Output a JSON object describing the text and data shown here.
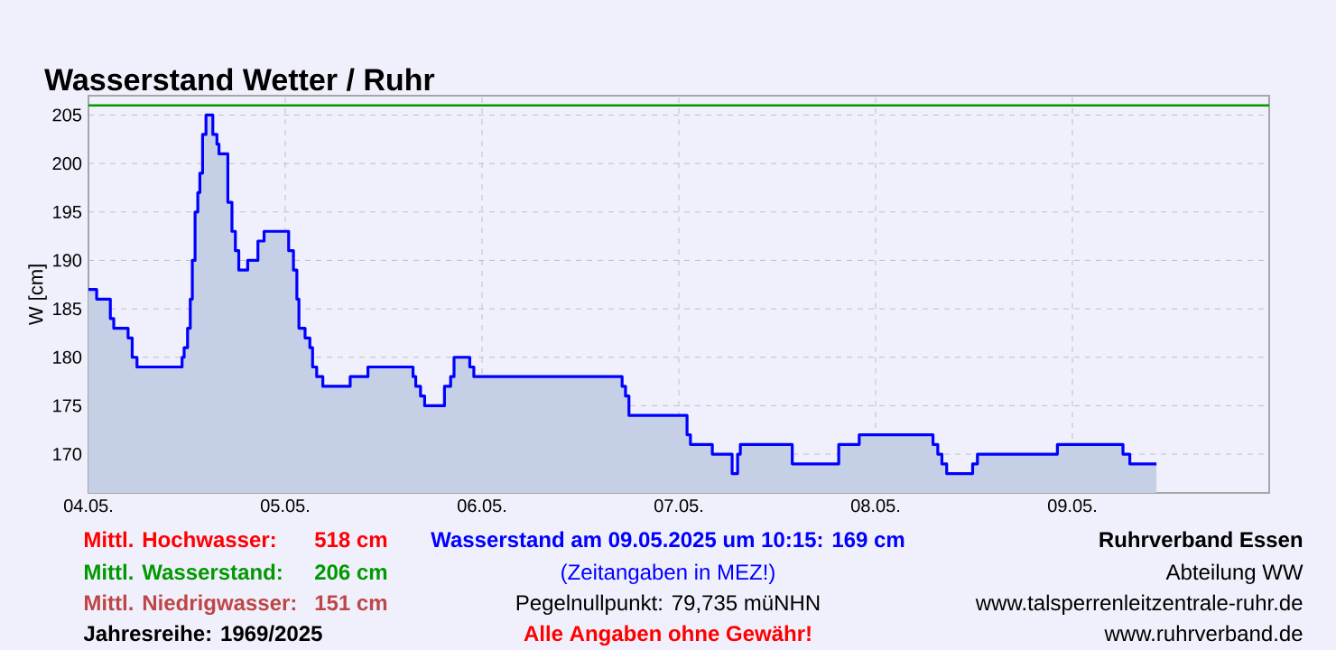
{
  "chart_data": {
    "type": "step",
    "title": "Wasserstand Wetter / Ruhr",
    "ylabel": "W [cm]",
    "xlim": [
      "2025-05-04",
      "2025-05-10"
    ],
    "xticks": [
      {
        "value": "2025-05-04",
        "label": "04.05."
      },
      {
        "value": "2025-05-05",
        "label": "05.05."
      },
      {
        "value": "2025-05-06",
        "label": "06.05."
      },
      {
        "value": "2025-05-07",
        "label": "07.05."
      },
      {
        "value": "2025-05-08",
        "label": "08.05."
      },
      {
        "value": "2025-05-09",
        "label": "09.05."
      }
    ],
    "ylim": [
      166,
      207
    ],
    "yticks": [
      170,
      175,
      180,
      185,
      190,
      195,
      200,
      205
    ],
    "grid": true,
    "ref_lines": [
      {
        "axis": "y",
        "value": 206,
        "color": "#009900"
      }
    ],
    "x": [
      "2025-05-04T00:00",
      "2025-05-04T01:00",
      "2025-05-04T02:40",
      "2025-05-04T03:05",
      "2025-05-04T04:50",
      "2025-05-04T05:20",
      "2025-05-04T05:55",
      "2025-05-04T11:25",
      "2025-05-04T11:40",
      "2025-05-04T12:05",
      "2025-05-04T12:25",
      "2025-05-04T12:40",
      "2025-05-04T13:00",
      "2025-05-04T13:20",
      "2025-05-04T13:35",
      "2025-05-04T13:55",
      "2025-05-04T14:20",
      "2025-05-04T15:10",
      "2025-05-04T15:40",
      "2025-05-04T15:55",
      "2025-05-04T17:00",
      "2025-05-04T17:30",
      "2025-05-04T17:55",
      "2025-05-04T18:20",
      "2025-05-04T19:25",
      "2025-05-04T20:40",
      "2025-05-04T21:25",
      "2025-05-05T00:25",
      "2025-05-05T01:00",
      "2025-05-05T01:25",
      "2025-05-05T01:40",
      "2025-05-05T02:25",
      "2025-05-05T03:00",
      "2025-05-05T03:20",
      "2025-05-05T03:50",
      "2025-05-05T04:35",
      "2025-05-05T07:55",
      "2025-05-05T10:05",
      "2025-05-05T15:35",
      "2025-05-05T15:55",
      "2025-05-05T16:30",
      "2025-05-05T17:00",
      "2025-05-05T19:25",
      "2025-05-05T20:10",
      "2025-05-05T20:35",
      "2025-05-05T22:30",
      "2025-05-05T23:00",
      "2025-05-06T17:05",
      "2025-05-06T17:30",
      "2025-05-06T17:55",
      "2025-05-07T01:00",
      "2025-05-07T01:25",
      "2025-05-07T04:05",
      "2025-05-07T06:30",
      "2025-05-07T07:10",
      "2025-05-07T07:30",
      "2025-05-07T13:50",
      "2025-05-07T19:30",
      "2025-05-07T22:00",
      "2025-05-08T07:00",
      "2025-05-08T07:35",
      "2025-05-08T08:05",
      "2025-05-08T08:40",
      "2025-05-08T11:50",
      "2025-05-08T12:25",
      "2025-05-08T22:10",
      "2025-05-09T06:10",
      "2025-05-09T07:00",
      "2025-05-09T10:15"
    ],
    "series": [
      {
        "type": "area",
        "color": "#c5cfe6",
        "values": [
          187,
          186,
          184,
          183,
          182,
          180,
          179,
          180,
          181,
          183,
          186,
          190,
          195,
          197,
          199,
          203,
          205,
          203,
          202,
          201,
          196,
          193,
          191,
          189,
          190,
          192,
          193,
          191,
          189,
          186,
          183,
          182,
          181,
          179,
          178,
          177,
          178,
          179,
          178,
          177,
          176,
          175,
          177,
          178,
          180,
          179,
          178,
          177,
          176,
          174,
          172,
          171,
          170,
          168,
          170,
          171,
          169,
          171,
          172,
          171,
          170,
          169,
          168,
          169,
          170,
          171,
          170,
          169,
          169
        ]
      },
      {
        "color": "#0000ff",
        "values": [
          187,
          186,
          184,
          183,
          182,
          180,
          179,
          180,
          181,
          183,
          186,
          190,
          195,
          197,
          199,
          203,
          205,
          203,
          202,
          201,
          196,
          193,
          191,
          189,
          190,
          192,
          193,
          191,
          189,
          186,
          183,
          182,
          181,
          179,
          178,
          177,
          178,
          179,
          178,
          177,
          176,
          175,
          177,
          178,
          180,
          179,
          178,
          177,
          176,
          174,
          172,
          171,
          170,
          168,
          170,
          171,
          169,
          171,
          172,
          171,
          170,
          169,
          168,
          169,
          170,
          171,
          170,
          169,
          169
        ]
      }
    ],
    "annotations": [
      "Mittl. Hochwasser:",
      "518 cm",
      "Mittl. Wasserstand:",
      "206 cm",
      "Mittl. Niedrigwasser:",
      "151 cm",
      "Jahresreihe: 1969/2025",
      "Wasserstand am 09.05.2025 um 10:15: 169 cm",
      "(Zeitangaben in MEZ!)",
      "Pegelnullpunkt:   79,735 müNHN",
      "Alle Angaben ohne Gewähr!",
      "Ruhrverband Essen",
      "Abteilung WW",
      "www.talsperrenleitzentrale-ruhr.de",
      "www.ruhrverband.de"
    ]
  }
}
